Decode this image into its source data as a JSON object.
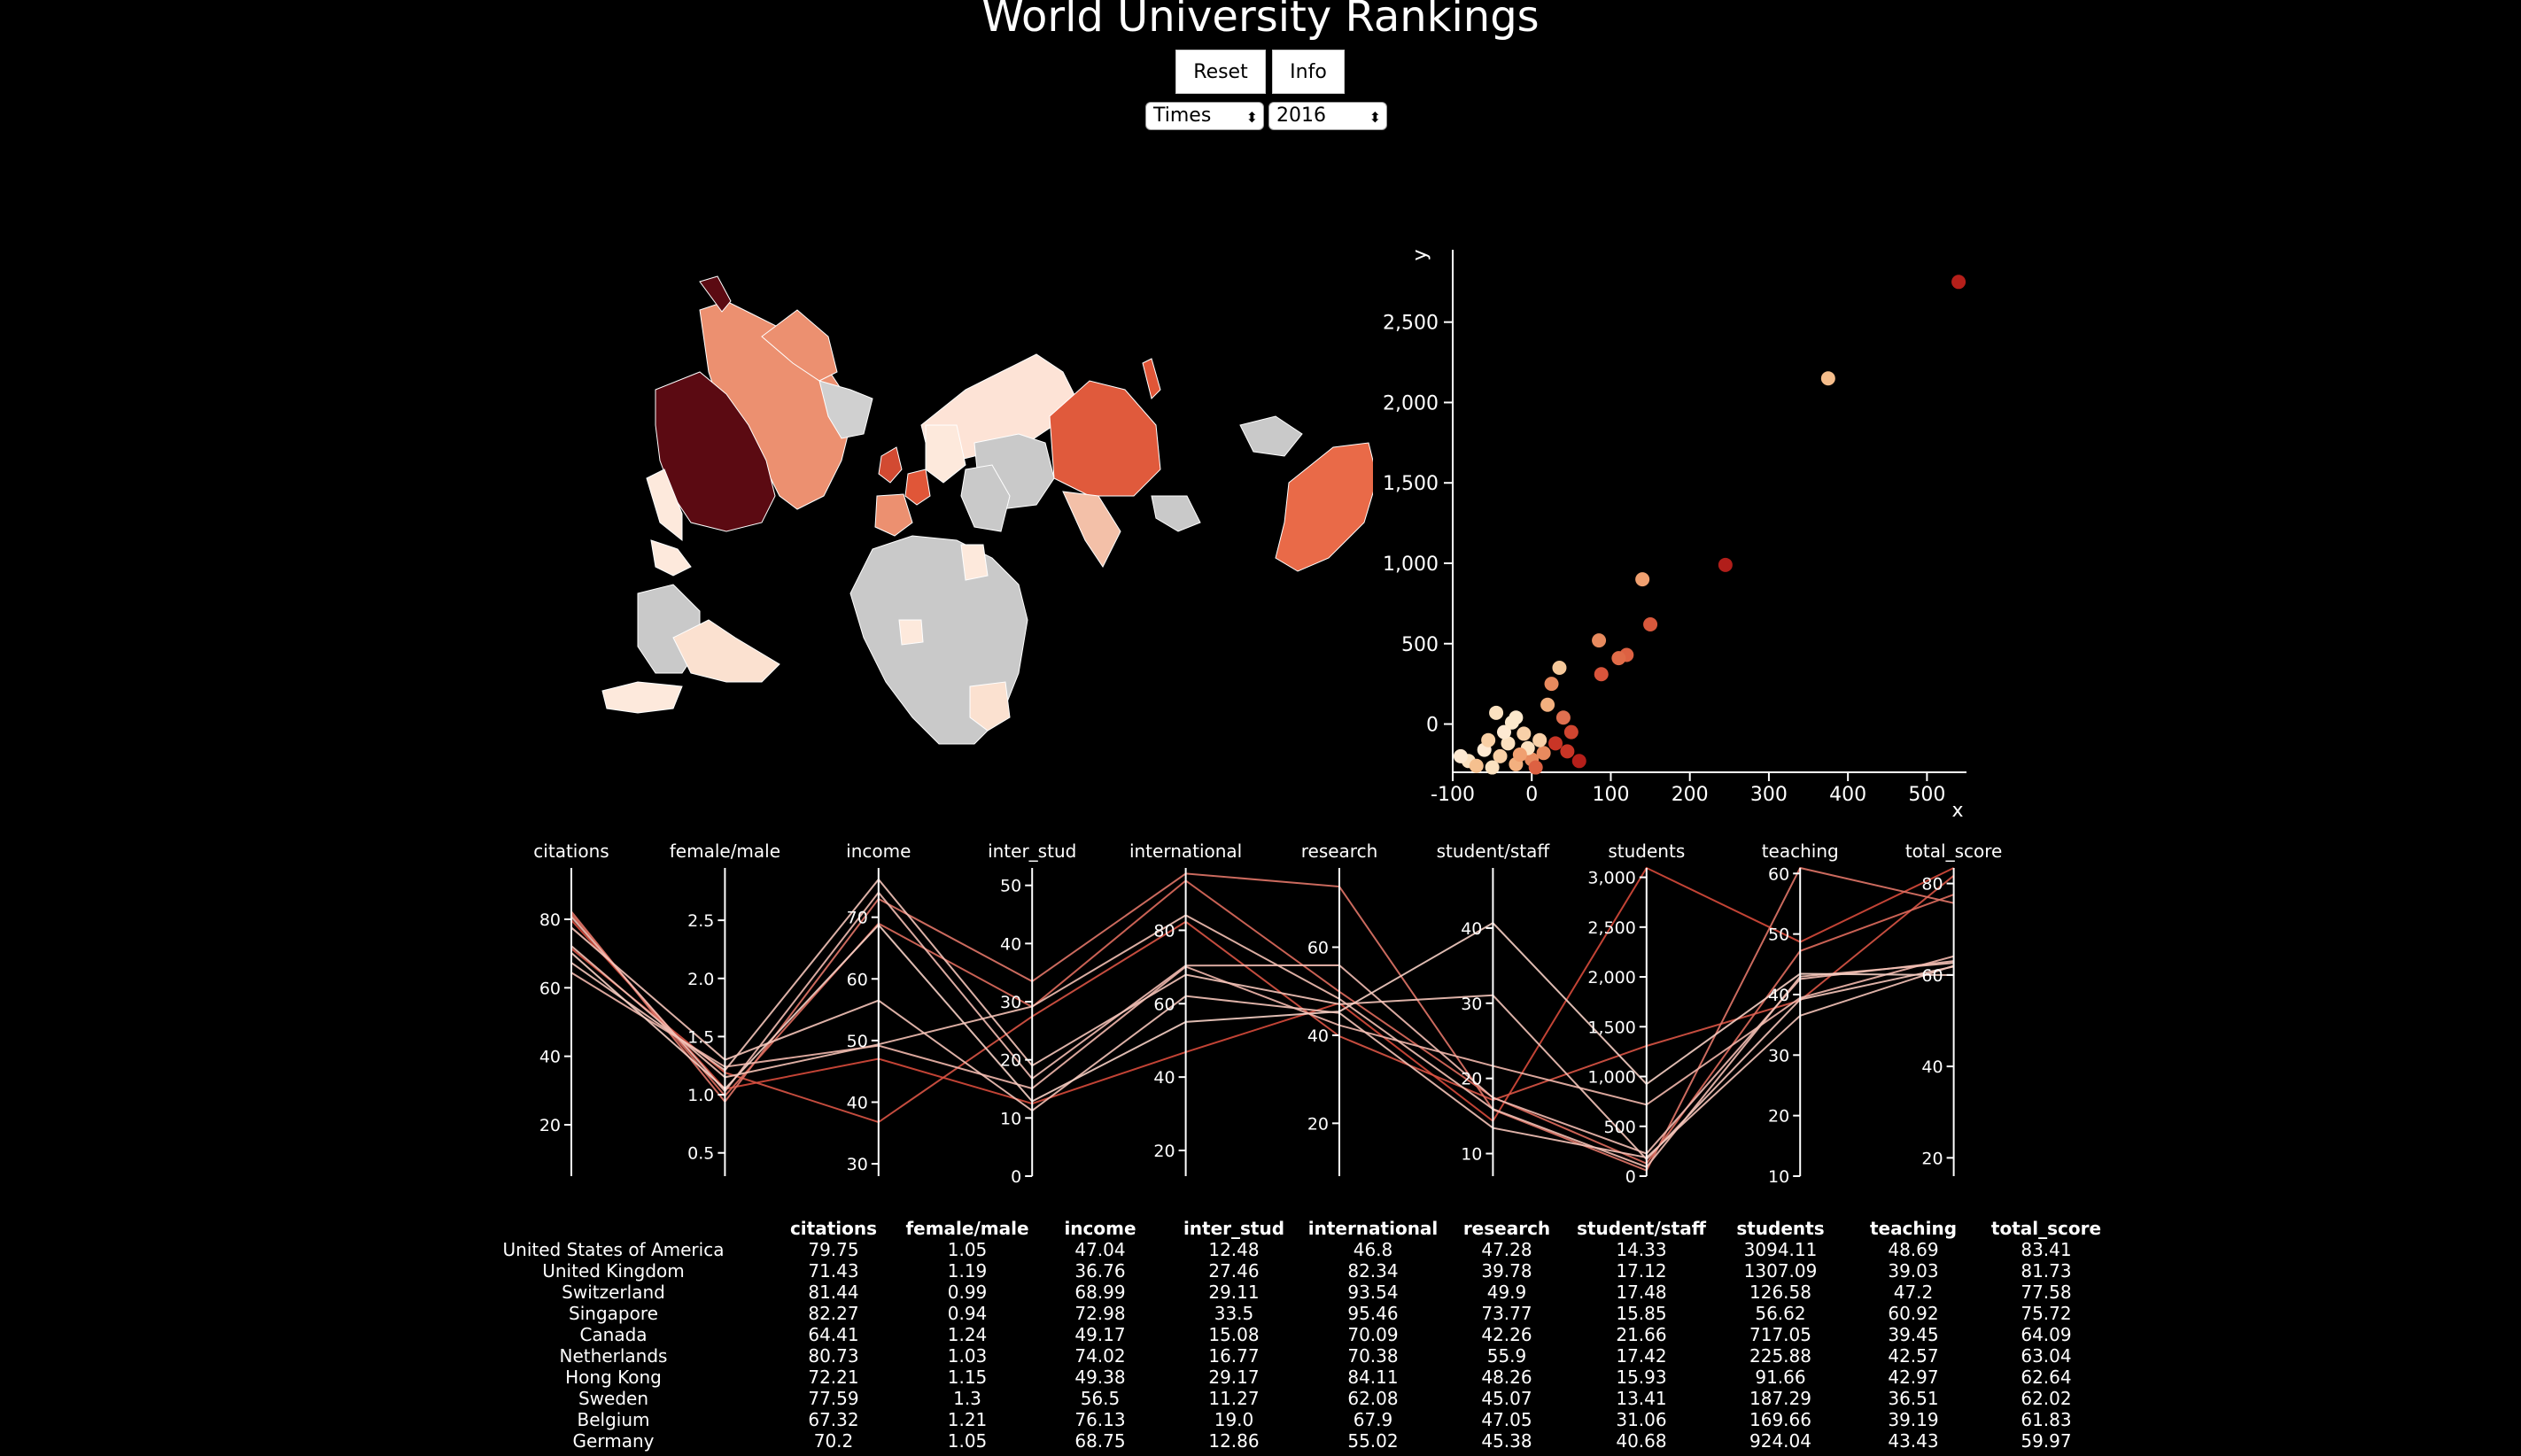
{
  "header": {
    "title": "World University Rankings",
    "reset_label": "Reset",
    "info_label": "Info",
    "source_select": "Times",
    "year_select": "2016"
  },
  "colors": {
    "background": "#000000",
    "no_data": "#c9c9c9",
    "scale_low": "#fdf0e6",
    "scale_high": "#67000d"
  },
  "map": {
    "projection": "Dymaxion (Fuller) world map",
    "shading": "choropleth by number of ranked universities"
  },
  "chart_data": [
    {
      "type": "scatter",
      "x_axis_name": "x",
      "y_axis_name": "y",
      "xlim": [
        -100,
        550
      ],
      "ylim": [
        -300,
        2950
      ],
      "x_ticks": [
        -100,
        0,
        100,
        200,
        300,
        400,
        500
      ],
      "y_ticks": [
        0,
        500,
        1000,
        1500,
        2000,
        2500
      ],
      "y_tick_labels": [
        "0",
        "500",
        "1,000",
        "1,500",
        "2,000",
        "2,500"
      ],
      "points": [
        {
          "x": 540,
          "y": 2750,
          "c": "#b51f1a"
        },
        {
          "x": 375,
          "y": 2150,
          "c": "#f5bd8b"
        },
        {
          "x": 245,
          "y": 990,
          "c": "#b11e1a"
        },
        {
          "x": 140,
          "y": 900,
          "c": "#f0a070"
        },
        {
          "x": 150,
          "y": 620,
          "c": "#d8583c"
        },
        {
          "x": 120,
          "y": 430,
          "c": "#dd6142"
        },
        {
          "x": 110,
          "y": 410,
          "c": "#e06b48"
        },
        {
          "x": 85,
          "y": 520,
          "c": "#e78a5e"
        },
        {
          "x": 88,
          "y": 310,
          "c": "#d8543b"
        },
        {
          "x": 35,
          "y": 350,
          "c": "#f5c89a"
        },
        {
          "x": 25,
          "y": 250,
          "c": "#e88a5e"
        },
        {
          "x": 40,
          "y": 40,
          "c": "#e07050"
        },
        {
          "x": 20,
          "y": 120,
          "c": "#f3b07f"
        },
        {
          "x": 30,
          "y": -120,
          "c": "#c93526"
        },
        {
          "x": 50,
          "y": -50,
          "c": "#d04530"
        },
        {
          "x": 60,
          "y": -230,
          "c": "#b51f1a"
        },
        {
          "x": 15,
          "y": -180,
          "c": "#e88a5e"
        },
        {
          "x": -45,
          "y": 70,
          "c": "#fbe1c0"
        },
        {
          "x": -20,
          "y": 40,
          "c": "#fbe8cc"
        },
        {
          "x": -10,
          "y": -60,
          "c": "#f8d0a8"
        },
        {
          "x": -30,
          "y": -120,
          "c": "#fbe1c0"
        },
        {
          "x": -60,
          "y": -160,
          "c": "#fde9d2"
        },
        {
          "x": -40,
          "y": -200,
          "c": "#f8cfa5"
        },
        {
          "x": -80,
          "y": -230,
          "c": "#fbe1c0"
        },
        {
          "x": -90,
          "y": -200,
          "c": "#fde9d2"
        },
        {
          "x": -70,
          "y": -260,
          "c": "#f5c08f"
        },
        {
          "x": -50,
          "y": -270,
          "c": "#fbe1c0"
        },
        {
          "x": -20,
          "y": -250,
          "c": "#f3b07f"
        },
        {
          "x": 0,
          "y": -220,
          "c": "#e88a5e"
        },
        {
          "x": 10,
          "y": -100,
          "c": "#f8d0a8"
        },
        {
          "x": -5,
          "y": -150,
          "c": "#fbe1c0"
        },
        {
          "x": -35,
          "y": -50,
          "c": "#fde9d2"
        },
        {
          "x": -55,
          "y": -100,
          "c": "#f8cfa5"
        },
        {
          "x": -15,
          "y": -190,
          "c": "#f0a070"
        },
        {
          "x": 5,
          "y": -270,
          "c": "#dd6142"
        },
        {
          "x": 45,
          "y": -170,
          "c": "#c93526"
        },
        {
          "x": -25,
          "y": 10,
          "c": "#fbe8cc"
        }
      ]
    },
    {
      "type": "parallel-coordinates",
      "axes": [
        {
          "name": "citations",
          "min": 5,
          "max": 95,
          "ticks": [
            20,
            40,
            60,
            80
          ]
        },
        {
          "name": "female/male",
          "min": 0.3,
          "max": 2.95,
          "ticks": [
            "0.5",
            "1.0",
            "1.5",
            "2.0",
            "2.5"
          ]
        },
        {
          "name": "income",
          "min": 28,
          "max": 78,
          "ticks": [
            30,
            40,
            50,
            60,
            70
          ]
        },
        {
          "name": "inter_stud",
          "min": 0,
          "max": 53,
          "ticks": [
            0,
            10,
            20,
            30,
            40,
            50
          ]
        },
        {
          "name": "international",
          "min": 13,
          "max": 97,
          "ticks": [
            20,
            40,
            60,
            80
          ]
        },
        {
          "name": "research",
          "min": 8,
          "max": 78,
          "ticks": [
            20,
            40,
            60
          ]
        },
        {
          "name": "student/staff",
          "min": 7,
          "max": 48,
          "ticks": [
            10,
            20,
            30,
            40
          ]
        },
        {
          "name": "students",
          "min": 0,
          "max": 3094.11,
          "ticks": [
            "0",
            "500",
            "1,000",
            "1,500",
            "2,000",
            "2,500",
            "3,000"
          ]
        },
        {
          "name": "teaching",
          "min": 10,
          "max": 60.92,
          "ticks": [
            10,
            20,
            30,
            40,
            50,
            60
          ]
        },
        {
          "name": "total_score",
          "min": 16,
          "max": 83.41,
          "ticks": [
            20,
            40,
            60,
            80
          ]
        }
      ]
    }
  ],
  "table": {
    "columns": [
      "citations",
      "female/male",
      "income",
      "inter_stud",
      "international",
      "research",
      "student/staff",
      "students",
      "teaching",
      "total_score"
    ],
    "rows": [
      {
        "country": "United States of America",
        "values": [
          "79.75",
          "1.05",
          "47.04",
          "12.48",
          "46.8",
          "47.28",
          "14.33",
          "3094.11",
          "48.69",
          "83.41"
        ]
      },
      {
        "country": "United Kingdom",
        "values": [
          "71.43",
          "1.19",
          "36.76",
          "27.46",
          "82.34",
          "39.78",
          "17.12",
          "1307.09",
          "39.03",
          "81.73"
        ]
      },
      {
        "country": "Switzerland",
        "values": [
          "81.44",
          "0.99",
          "68.99",
          "29.11",
          "93.54",
          "49.9",
          "17.48",
          "126.58",
          "47.2",
          "77.58"
        ]
      },
      {
        "country": "Singapore",
        "values": [
          "82.27",
          "0.94",
          "72.98",
          "33.5",
          "95.46",
          "73.77",
          "15.85",
          "56.62",
          "60.92",
          "75.72"
        ]
      },
      {
        "country": "Canada",
        "values": [
          "64.41",
          "1.24",
          "49.17",
          "15.08",
          "70.09",
          "42.26",
          "21.66",
          "717.05",
          "39.45",
          "64.09"
        ]
      },
      {
        "country": "Netherlands",
        "values": [
          "80.73",
          "1.03",
          "74.02",
          "16.77",
          "70.38",
          "55.9",
          "17.42",
          "225.88",
          "42.57",
          "63.04"
        ]
      },
      {
        "country": "Hong Kong",
        "values": [
          "72.21",
          "1.15",
          "49.38",
          "29.17",
          "84.11",
          "48.26",
          "15.93",
          "91.66",
          "42.97",
          "62.64"
        ]
      },
      {
        "country": "Sweden",
        "values": [
          "77.59",
          "1.3",
          "56.5",
          "11.27",
          "62.08",
          "45.07",
          "13.41",
          "187.29",
          "36.51",
          "62.02"
        ]
      },
      {
        "country": "Belgium",
        "values": [
          "67.32",
          "1.21",
          "76.13",
          "19.0",
          "67.9",
          "47.05",
          "31.06",
          "169.66",
          "39.19",
          "61.83"
        ]
      },
      {
        "country": "Germany",
        "values": [
          "70.2",
          "1.05",
          "68.75",
          "12.86",
          "55.02",
          "45.38",
          "40.68",
          "924.04",
          "43.43",
          "59.97"
        ]
      }
    ]
  }
}
